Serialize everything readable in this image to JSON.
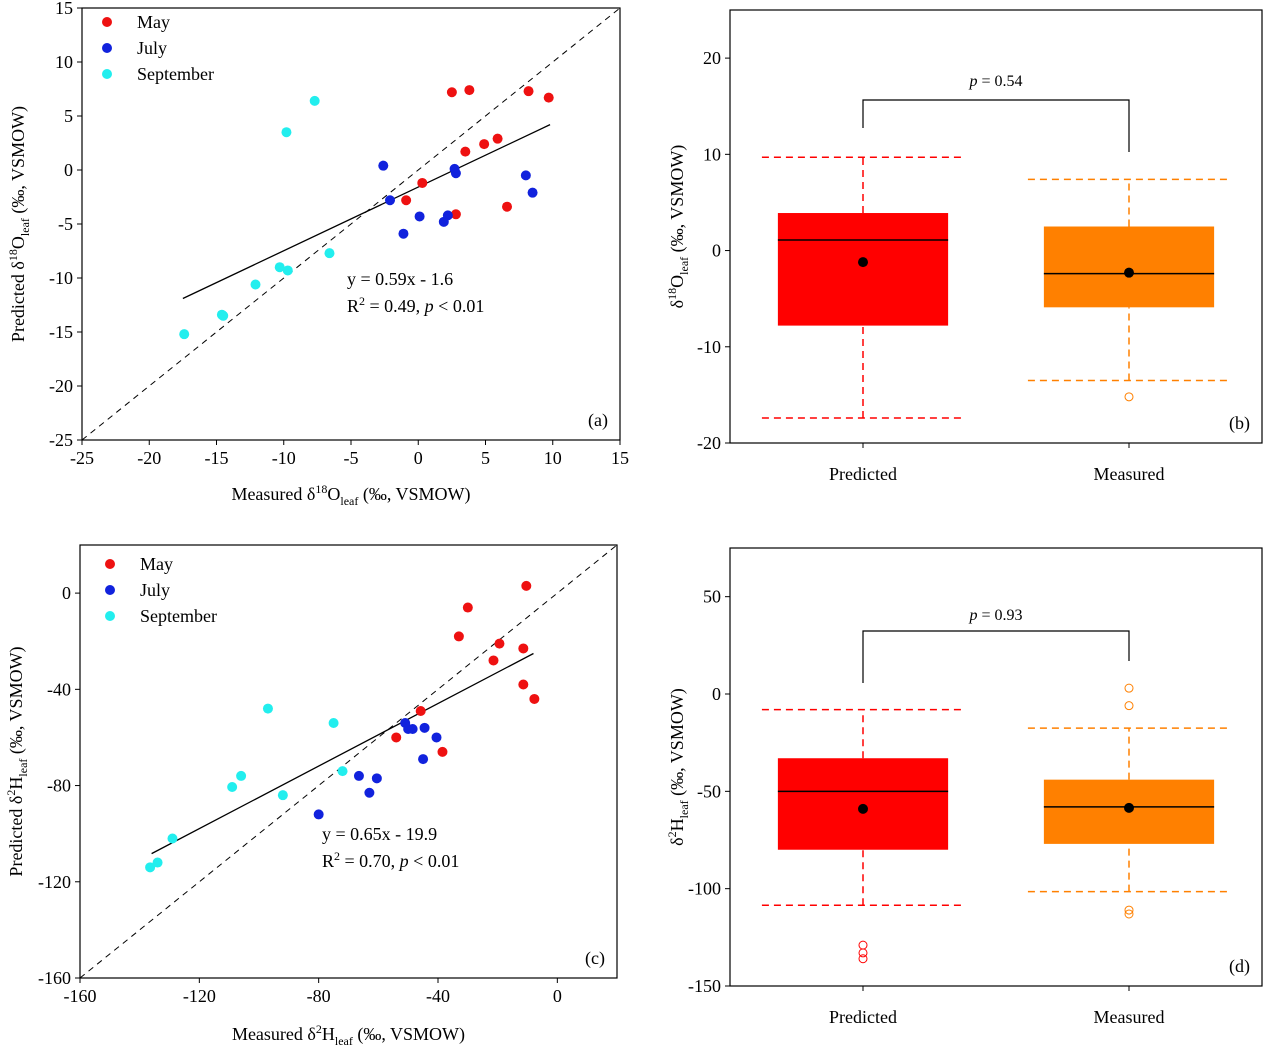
{
  "chart_data": [
    {
      "type": "scatter",
      "xlim": [
        -25,
        15
      ],
      "ylim": [
        -25,
        15
      ],
      "xticks": [
        -25,
        -20,
        -15,
        -10,
        -5,
        0,
        5,
        10,
        15
      ],
      "yticks": [
        -25,
        -20,
        -15,
        -10,
        -5,
        0,
        5,
        10,
        15
      ],
      "series": [
        {
          "name": "May",
          "color": "#ee1111",
          "x": [
            2.5,
            3.8,
            8.2,
            9.7,
            5.9,
            4.9,
            3.5,
            0.3,
            -0.9,
            2.8,
            6.6
          ],
          "y": [
            7.2,
            7.4,
            7.3,
            6.7,
            2.9,
            2.4,
            1.7,
            -1.2,
            -2.8,
            -4.1,
            -3.4
          ]
        },
        {
          "name": "July",
          "color": "#1122dd",
          "x": [
            -2.6,
            2.7,
            2.8,
            8.0,
            8.5,
            -2.1,
            0.1,
            2.2,
            1.9,
            -1.1
          ],
          "y": [
            0.4,
            0.1,
            -0.3,
            -0.5,
            -2.1,
            -2.8,
            -4.3,
            -4.2,
            -4.8,
            -5.9
          ]
        },
        {
          "name": "September",
          "color": "#22eeee",
          "x": [
            -7.7,
            -9.8,
            -10.3,
            -9.7,
            -6.6,
            -12.1,
            -14.5,
            -14.6,
            -17.4
          ],
          "y": [
            6.4,
            3.5,
            -9.0,
            -9.3,
            -7.7,
            -10.6,
            -13.5,
            -13.4,
            -15.2
          ]
        }
      ],
      "fit": {
        "x": [
          -17.5,
          9.8
        ],
        "y": [
          -11.9,
          4.2
        ]
      },
      "equation": "y = 0.59x - 1.6",
      "r2": [
        {
          "text": "R"
        },
        {
          "text": "2",
          "script": "sup"
        },
        {
          "text": " = 0.49, "
        },
        {
          "text": "p",
          "style": "italic"
        },
        {
          "text": " < 0.01"
        }
      ],
      "x_label": [
        {
          "text": "Measured δ"
        },
        {
          "text": "18",
          "script": "sup"
        },
        {
          "text": "O"
        },
        {
          "text": "leaf",
          "script": "sub"
        },
        {
          "text": " (‰, VSMOW)"
        }
      ],
      "y_label": [
        {
          "text": "Predicted δ"
        },
        {
          "text": "18",
          "script": "sup"
        },
        {
          "text": "O"
        },
        {
          "text": "leaf",
          "script": "sub"
        },
        {
          "text": " (‰, VSMOW)"
        }
      ],
      "panel_label": "(a)"
    },
    {
      "type": "box",
      "ylim": [
        -20,
        25
      ],
      "yticks": [
        -20,
        -10,
        0,
        10,
        20
      ],
      "categories": [
        "Predicted",
        "Measured"
      ],
      "colors": [
        "#ff0000",
        "#ff8000"
      ],
      "q1": [
        -7.8,
        -5.9
      ],
      "median": [
        1.1,
        -2.4
      ],
      "q3": [
        3.9,
        2.5
      ],
      "mean": [
        -1.2,
        -2.3
      ],
      "whisker_low": [
        -17.4,
        -13.5
      ],
      "whisker_high": [
        9.7,
        7.4
      ],
      "outliers": [
        [],
        [
          -15.2
        ]
      ],
      "annotation": [
        {
          "text": "p",
          "style": "italic"
        },
        {
          "text": " = 0.54"
        }
      ],
      "y_label": [
        {
          "text": "δ"
        },
        {
          "text": "18",
          "script": "sup"
        },
        {
          "text": "O"
        },
        {
          "text": "leaf",
          "script": "sub"
        },
        {
          "text": " (‰, VSMOW)"
        }
      ],
      "panel_label": "(b)"
    },
    {
      "type": "scatter",
      "xlim": [
        -160,
        20
      ],
      "ylim": [
        -160,
        20
      ],
      "xticks": [
        -160,
        -120,
        -80,
        -40,
        0
      ],
      "yticks": [
        -160,
        -120,
        -80,
        -40,
        0
      ],
      "series": [
        {
          "name": "May",
          "color": "#ee1111",
          "x": [
            -10.4,
            -30,
            -33,
            -19.4,
            -11.4,
            -21.4,
            -11.4,
            -7.7,
            -45.8,
            -54,
            -38.5
          ],
          "y": [
            3,
            -6,
            -18,
            -21,
            -23,
            -28,
            -38,
            -44,
            -49,
            -60,
            -66
          ]
        },
        {
          "name": "July",
          "color": "#1122dd",
          "x": [
            -51,
            -50,
            -48.5,
            -44.5,
            -40.5,
            -45,
            -66.5,
            -60.5,
            -63,
            -80
          ],
          "y": [
            -54,
            -56.5,
            -56.5,
            -56,
            -60,
            -69,
            -76,
            -77,
            -83,
            -92
          ]
        },
        {
          "name": "September",
          "color": "#22eeee",
          "x": [
            -97,
            -75,
            -72,
            -106,
            -109,
            -92,
            -129,
            -134,
            -136.5
          ],
          "y": [
            -48,
            -54,
            -74,
            -76,
            -80.6,
            -84,
            -102,
            -112,
            -114
          ]
        }
      ],
      "fit": {
        "x": [
          -136,
          -8
        ],
        "y": [
          -108.3,
          -25.1
        ]
      },
      "equation": "y = 0.65x - 19.9",
      "r2": [
        {
          "text": "R"
        },
        {
          "text": "2",
          "script": "sup"
        },
        {
          "text": " = 0.70, "
        },
        {
          "text": "p",
          "style": "italic"
        },
        {
          "text": " < 0.01"
        }
      ],
      "x_label": [
        {
          "text": "Measured δ"
        },
        {
          "text": "2",
          "script": "sup"
        },
        {
          "text": "H"
        },
        {
          "text": "leaf",
          "script": "sub"
        },
        {
          "text": " (‰, VSMOW)"
        }
      ],
      "y_label": [
        {
          "text": "Predicted δ"
        },
        {
          "text": "2",
          "script": "sup"
        },
        {
          "text": "H"
        },
        {
          "text": "leaf",
          "script": "sub"
        },
        {
          "text": " (‰, VSMOW)"
        }
      ],
      "panel_label": "(c)"
    },
    {
      "type": "box",
      "ylim": [
        -150,
        75
      ],
      "yticks": [
        -150,
        -100,
        -50,
        0,
        50
      ],
      "categories": [
        "Predicted",
        "Measured"
      ],
      "colors": [
        "#ff0000",
        "#ff8000"
      ],
      "q1": [
        -80,
        -77
      ],
      "median": [
        -50,
        -58
      ],
      "q3": [
        -33,
        -44
      ],
      "mean": [
        -59,
        -58.5
      ],
      "whisker_low": [
        -108.5,
        -101.5
      ],
      "whisker_high": [
        -8,
        -17.5
      ],
      "outliers": [
        [
          -129,
          -133,
          -136
        ],
        [
          -111,
          -113,
          -6,
          3
        ]
      ],
      "annotation": [
        {
          "text": "p",
          "style": "italic"
        },
        {
          "text": " = 0.93"
        }
      ],
      "y_label": [
        {
          "text": "δ"
        },
        {
          "text": "2",
          "script": "sup"
        },
        {
          "text": "H"
        },
        {
          "text": "leaf",
          "script": "sub"
        },
        {
          "text": " (‰, VSMOW)"
        }
      ],
      "panel_label": "(d)"
    }
  ]
}
